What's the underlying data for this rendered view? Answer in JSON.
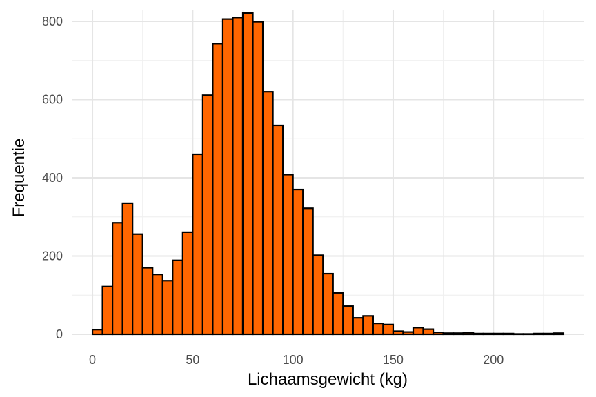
{
  "chart_data": {
    "type": "bar",
    "subtype": "histogram",
    "title": "",
    "xlabel": "Lichaamsgewicht (kg)",
    "ylabel": "Frequentie",
    "bar_color": "#FF6600",
    "bar_edge_color": "#000000",
    "grid": true,
    "legend": "none",
    "xlim": [
      -10,
      245
    ],
    "ylim": [
      0,
      830
    ],
    "x_ticks": [
      0,
      50,
      100,
      150,
      200
    ],
    "y_ticks": [
      0,
      200,
      400,
      600,
      800
    ],
    "bin_width": 5,
    "bin_centers": [
      2.5,
      7.5,
      12.5,
      17.5,
      22.5,
      27.5,
      32.5,
      37.5,
      42.5,
      47.5,
      52.5,
      57.5,
      62.5,
      67.5,
      72.5,
      77.5,
      82.5,
      87.5,
      92.5,
      97.5,
      102.5,
      107.5,
      112.5,
      117.5,
      122.5,
      127.5,
      132.5,
      137.5,
      142.5,
      147.5,
      152.5,
      157.5,
      162.5,
      167.5,
      172.5,
      177.5,
      182.5,
      187.5,
      192.5,
      197.5,
      202.5,
      207.5,
      212.5,
      217.5,
      222.5,
      227.5,
      232.5
    ],
    "values": [
      12,
      122,
      285,
      335,
      256,
      170,
      153,
      137,
      189,
      261,
      460,
      611,
      743,
      806,
      810,
      821,
      799,
      620,
      534,
      408,
      370,
      322,
      202,
      155,
      106,
      72,
      42,
      47,
      28,
      25,
      8,
      6,
      17,
      13,
      5,
      3,
      3,
      4,
      2,
      2,
      2,
      2,
      1,
      1,
      2,
      2,
      3
    ]
  }
}
